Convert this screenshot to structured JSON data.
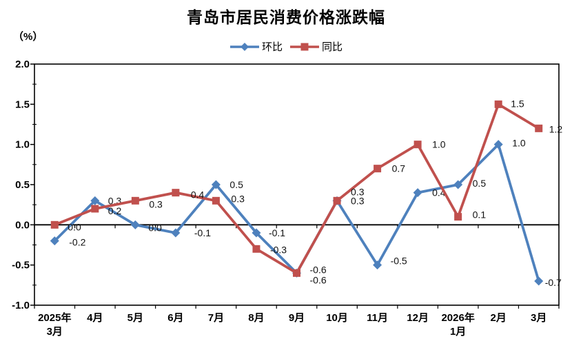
{
  "chart_data": {
    "type": "line",
    "title": "青岛市居民消费价格涨跌幅",
    "unit": "（%）",
    "categories": [
      "2025年\n3月",
      "4月",
      "5月",
      "6月",
      "7月",
      "8月",
      "9月",
      "10月",
      "11月",
      "12月",
      "2026年\n1月",
      "2月",
      "3月"
    ],
    "series": [
      {
        "key": "huanbi",
        "name": "环比",
        "color": "#4E81BD",
        "marker": "diamond",
        "values": [
          -0.2,
          0.3,
          0.0,
          -0.1,
          0.5,
          -0.1,
          -0.6,
          0.3,
          -0.5,
          0.4,
          0.5,
          1.0,
          -0.7
        ],
        "labels": [
          "-0.2",
          "0.3",
          "0.0",
          "-0.1",
          "0.5",
          "-0.1",
          "-0.6",
          "0.3",
          "-0.5",
          "0.4",
          "0.5",
          "1.0",
          "-0.7"
        ]
      },
      {
        "key": "tongbi",
        "name": "同比",
        "color": "#C0504D",
        "marker": "square",
        "values": [
          0.0,
          0.2,
          0.3,
          0.4,
          0.3,
          -0.3,
          -0.6,
          0.3,
          0.7,
          1.0,
          0.1,
          1.5,
          1.2
        ],
        "labels": [
          "0.0",
          "0.2",
          "0.3",
          "0.4",
          "0.3",
          "-0.3",
          "-0.6",
          "0.3",
          "0.7",
          "1.0",
          "0.1",
          "1.5",
          "1.2"
        ]
      }
    ],
    "y_axis": {
      "min": -1.0,
      "max": 2.0,
      "major_step": 0.5,
      "ticks": [
        "2.0",
        "1.5",
        "1.0",
        "0.5",
        "0.0",
        "-0.5",
        "-1.0"
      ]
    },
    "legend_position": "top",
    "grid": "off"
  }
}
